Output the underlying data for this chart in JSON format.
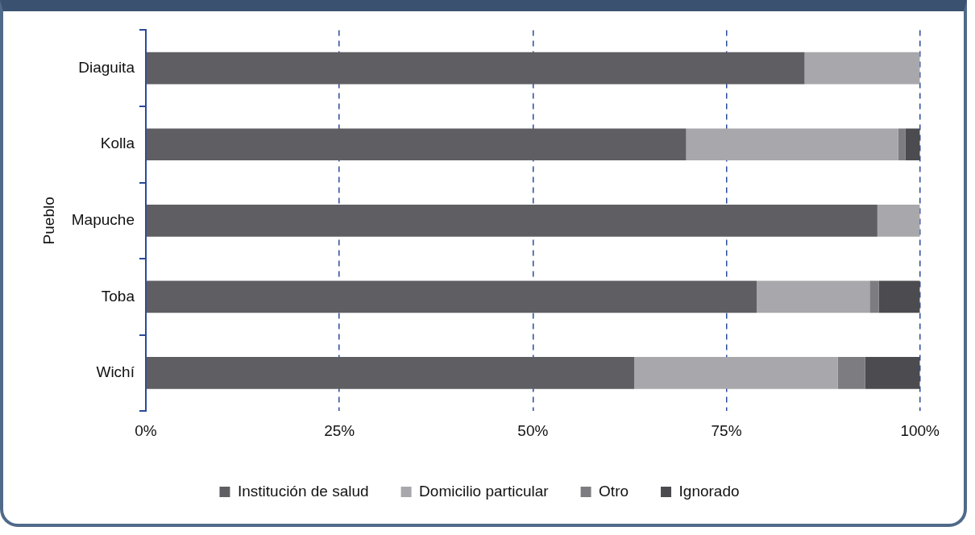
{
  "chart_data": {
    "type": "bar",
    "orientation": "horizontal",
    "stacked": true,
    "ylabel": "Pueblo",
    "categories": [
      "Diaguita",
      "Kolla",
      "Mapuche",
      "Toba",
      "Wichí"
    ],
    "series": [
      {
        "name": "Institución de salud",
        "color": "#5f5e63",
        "values": [
          85.1,
          69.8,
          94.5,
          78.9,
          63.1
        ]
      },
      {
        "name": "Domicilio particular",
        "color": "#a8a7ab",
        "values": [
          14.9,
          27.4,
          5.5,
          14.6,
          26.3
        ]
      },
      {
        "name": "Otro",
        "color": "#7d7c80",
        "values": [
          0,
          0.9,
          0,
          1.2,
          3.5
        ]
      },
      {
        "name": "Ignorado",
        "color": "#4c4b4f",
        "values": [
          0,
          1.9,
          0,
          5.3,
          7.1
        ]
      }
    ],
    "xlim": [
      0,
      100
    ],
    "xticks": [
      {
        "value": 0,
        "label": "0%"
      },
      {
        "value": 25,
        "label": "25%"
      },
      {
        "value": 50,
        "label": "50%"
      },
      {
        "value": 75,
        "label": "75%"
      },
      {
        "value": 100,
        "label": "100%"
      }
    ],
    "grid": "x",
    "legend": "bottom"
  }
}
